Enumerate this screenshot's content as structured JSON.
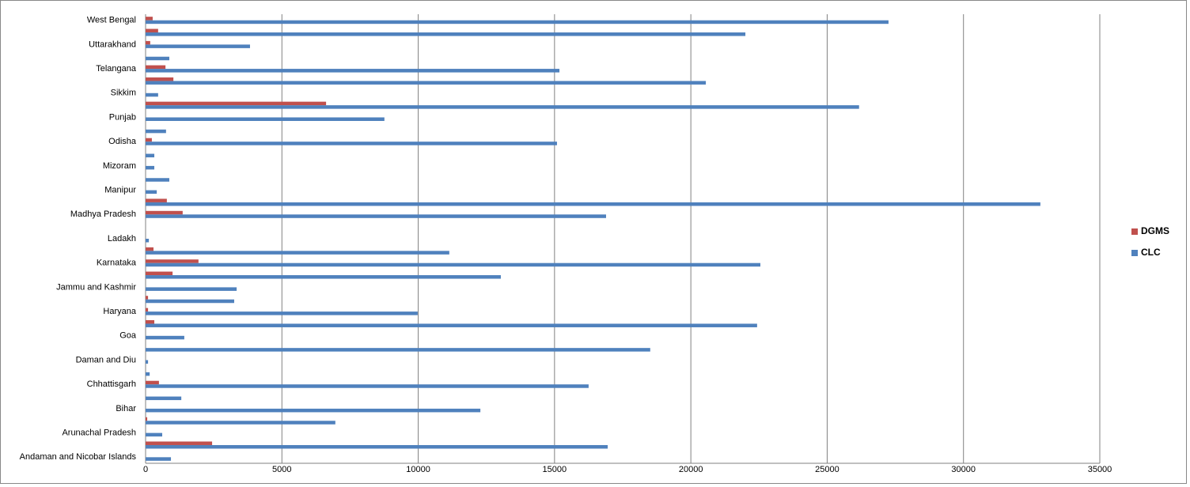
{
  "chart_data": {
    "type": "bar",
    "orientation": "horizontal",
    "categories": [
      "Andaman and Nicobar Islands",
      null,
      "Arunachal Pradesh",
      null,
      "Bihar",
      null,
      "Chhattisgarh",
      null,
      "Daman and Diu",
      null,
      "Goa",
      null,
      "Haryana",
      null,
      "Jammu and Kashmir",
      null,
      "Karnataka",
      null,
      "Ladakh",
      null,
      "Madhya Pradesh",
      null,
      "Manipur",
      null,
      "Mizoram",
      null,
      "Odisha",
      null,
      "Punjab",
      null,
      "Sikkim",
      null,
      "Telangana",
      null,
      "Uttarakhand",
      null,
      "West Bengal"
    ],
    "series": [
      {
        "name": "DGMS",
        "color": "#c0504d",
        "values": [
          0,
          2440,
          0,
          60,
          0,
          0,
          490,
          0,
          0,
          0,
          0,
          320,
          90,
          90,
          0,
          990,
          1940,
          290,
          0,
          0,
          1360,
          780,
          0,
          0,
          0,
          0,
          230,
          0,
          0,
          6620,
          0,
          1020,
          730,
          0,
          170,
          460,
          260
        ]
      },
      {
        "name": "CLC",
        "color": "#4f81bd",
        "values": [
          930,
          16950,
          610,
          6960,
          12280,
          1310,
          16250,
          150,
          90,
          18510,
          1420,
          22430,
          9980,
          3250,
          3340,
          13030,
          22550,
          11140,
          120,
          0,
          16890,
          32820,
          410,
          870,
          320,
          320,
          15090,
          750,
          8760,
          26170,
          460,
          20550,
          15180,
          870,
          3830,
          22000,
          27250
        ]
      }
    ],
    "xlim": [
      0,
      35000
    ],
    "xticks": [
      0,
      5000,
      10000,
      15000,
      20000,
      25000,
      30000,
      35000
    ],
    "grid": true,
    "legend": "right"
  }
}
